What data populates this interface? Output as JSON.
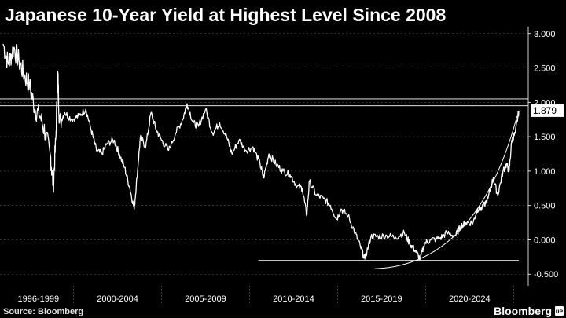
{
  "title": "Japanese 10-Year Yield at Highest Level Since 2008",
  "source": "Source: Bloomberg",
  "brand": "Bloomberg",
  "brand_mark": "ᴜᴘ",
  "colors": {
    "background": "#000000",
    "line": "#ffffff",
    "grid": "#555555",
    "value_label_bg": "#ffffff",
    "value_label_text": "#000000"
  },
  "chart_data": {
    "type": "line",
    "title": "Japanese 10-Year Yield at Highest Level Since 2008",
    "xlabel": "",
    "ylabel": "",
    "x_range": [
      1996.0,
      2025.3
    ],
    "ylim": [
      -0.6,
      3.1
    ],
    "y_ticks": [
      3.0,
      2.5,
      2.0,
      1.5,
      1.0,
      0.5,
      0.0,
      -0.5
    ],
    "y_tick_labels": [
      "3.000",
      "2.500",
      "2.000",
      "1.500",
      "1.000",
      "0.500",
      "0.000",
      "-0.500"
    ],
    "x_period_labels": [
      "1996-1999",
      "2000-2004",
      "2005-2009",
      "2010-2014",
      "2015-2019",
      "2020-2024"
    ],
    "x_period_boundaries": [
      2000.0,
      2005.0,
      2010.0,
      2015.0,
      2020.0,
      2025.0
    ],
    "grid": "horizontal dashed",
    "last_value_label": "1.879",
    "series": [
      {
        "values": [
          {
            "x": 1996.0,
            "y": 2.85
          },
          {
            "x": 1996.3,
            "y": 2.55
          },
          {
            "x": 1996.6,
            "y": 2.8
          },
          {
            "x": 1996.9,
            "y": 2.6
          },
          {
            "x": 1997.2,
            "y": 2.4
          },
          {
            "x": 1997.5,
            "y": 2.25
          },
          {
            "x": 1997.8,
            "y": 1.9
          },
          {
            "x": 1998.1,
            "y": 1.8
          },
          {
            "x": 1998.4,
            "y": 1.55
          },
          {
            "x": 1998.7,
            "y": 1.2
          },
          {
            "x": 1998.85,
            "y": 0.78
          },
          {
            "x": 1999.0,
            "y": 1.5
          },
          {
            "x": 1999.1,
            "y": 2.45
          },
          {
            "x": 1999.2,
            "y": 1.7
          },
          {
            "x": 1999.5,
            "y": 1.85
          },
          {
            "x": 1999.9,
            "y": 1.75
          },
          {
            "x": 2000.3,
            "y": 1.8
          },
          {
            "x": 2000.7,
            "y": 1.9
          },
          {
            "x": 2001.0,
            "y": 1.6
          },
          {
            "x": 2001.3,
            "y": 1.3
          },
          {
            "x": 2001.6,
            "y": 1.25
          },
          {
            "x": 2001.9,
            "y": 1.4
          },
          {
            "x": 2002.3,
            "y": 1.45
          },
          {
            "x": 2002.6,
            "y": 1.25
          },
          {
            "x": 2002.9,
            "y": 1.05
          },
          {
            "x": 2003.2,
            "y": 0.75
          },
          {
            "x": 2003.45,
            "y": 0.45
          },
          {
            "x": 2003.6,
            "y": 0.9
          },
          {
            "x": 2003.8,
            "y": 1.5
          },
          {
            "x": 2004.1,
            "y": 1.35
          },
          {
            "x": 2004.4,
            "y": 1.85
          },
          {
            "x": 2004.7,
            "y": 1.6
          },
          {
            "x": 2005.0,
            "y": 1.45
          },
          {
            "x": 2005.4,
            "y": 1.3
          },
          {
            "x": 2005.8,
            "y": 1.55
          },
          {
            "x": 2006.2,
            "y": 1.75
          },
          {
            "x": 2006.45,
            "y": 1.98
          },
          {
            "x": 2006.8,
            "y": 1.7
          },
          {
            "x": 2007.1,
            "y": 1.65
          },
          {
            "x": 2007.5,
            "y": 1.9
          },
          {
            "x": 2007.9,
            "y": 1.55
          },
          {
            "x": 2008.3,
            "y": 1.7
          },
          {
            "x": 2008.7,
            "y": 1.5
          },
          {
            "x": 2009.0,
            "y": 1.25
          },
          {
            "x": 2009.4,
            "y": 1.45
          },
          {
            "x": 2009.8,
            "y": 1.3
          },
          {
            "x": 2010.2,
            "y": 1.35
          },
          {
            "x": 2010.6,
            "y": 1.1
          },
          {
            "x": 2010.8,
            "y": 0.9
          },
          {
            "x": 2011.1,
            "y": 1.25
          },
          {
            "x": 2011.5,
            "y": 1.1
          },
          {
            "x": 2011.9,
            "y": 1.0
          },
          {
            "x": 2012.3,
            "y": 0.95
          },
          {
            "x": 2012.7,
            "y": 0.78
          },
          {
            "x": 2013.0,
            "y": 0.75
          },
          {
            "x": 2013.25,
            "y": 0.35
          },
          {
            "x": 2013.4,
            "y": 0.85
          },
          {
            "x": 2013.8,
            "y": 0.65
          },
          {
            "x": 2014.2,
            "y": 0.6
          },
          {
            "x": 2014.6,
            "y": 0.5
          },
          {
            "x": 2014.95,
            "y": 0.3
          },
          {
            "x": 2015.2,
            "y": 0.45
          },
          {
            "x": 2015.6,
            "y": 0.35
          },
          {
            "x": 2016.0,
            "y": 0.1
          },
          {
            "x": 2016.3,
            "y": -0.1
          },
          {
            "x": 2016.55,
            "y": -0.28
          },
          {
            "x": 2016.9,
            "y": 0.05
          },
          {
            "x": 2017.3,
            "y": 0.05
          },
          {
            "x": 2017.8,
            "y": 0.06
          },
          {
            "x": 2018.3,
            "y": 0.04
          },
          {
            "x": 2018.8,
            "y": 0.1
          },
          {
            "x": 2019.1,
            "y": -0.05
          },
          {
            "x": 2019.4,
            "y": -0.15
          },
          {
            "x": 2019.7,
            "y": -0.28
          },
          {
            "x": 2019.95,
            "y": -0.05
          },
          {
            "x": 2020.3,
            "y": 0.0
          },
          {
            "x": 2020.8,
            "y": 0.02
          },
          {
            "x": 2021.2,
            "y": 0.1
          },
          {
            "x": 2021.7,
            "y": 0.06
          },
          {
            "x": 2022.0,
            "y": 0.2
          },
          {
            "x": 2022.3,
            "y": 0.25
          },
          {
            "x": 2022.7,
            "y": 0.25
          },
          {
            "x": 2022.95,
            "y": 0.45
          },
          {
            "x": 2023.2,
            "y": 0.45
          },
          {
            "x": 2023.55,
            "y": 0.6
          },
          {
            "x": 2023.85,
            "y": 0.9
          },
          {
            "x": 2024.1,
            "y": 0.65
          },
          {
            "x": 2024.4,
            "y": 1.0
          },
          {
            "x": 2024.6,
            "y": 1.1
          },
          {
            "x": 2024.75,
            "y": 1.0
          },
          {
            "x": 2024.9,
            "y": 1.45
          },
          {
            "x": 2025.1,
            "y": 1.55
          },
          {
            "x": 2025.3,
            "y": 1.879
          }
        ]
      }
    ],
    "annotations": {
      "reference_lines_upper": [
        2.05,
        1.95
      ],
      "reference_line_lower": {
        "y": -0.3,
        "x_start": 2010.5,
        "x_end": 2025.3
      },
      "trend_curve": {
        "x_start": 2017.1,
        "y_start": -0.42,
        "x_end": 2025.2,
        "y_end": 1.8
      }
    }
  }
}
